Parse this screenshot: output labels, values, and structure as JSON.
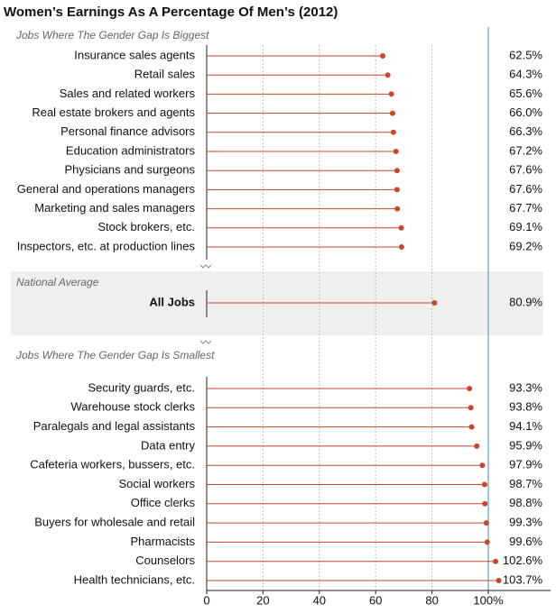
{
  "chart_data": {
    "type": "lollipop",
    "title": "Women’s Earnings As A Percentage Of Men’s (2012)",
    "color": "#c8462e",
    "xlim": [
      0,
      120
    ],
    "xticks": [
      0,
      20,
      40,
      60,
      80,
      {
        "value": 100,
        "label": "100%"
      }
    ],
    "grid": true,
    "reference_line": {
      "value": 100,
      "color": "#5aa0c8"
    },
    "groups": [
      {
        "label": "Jobs Where The Gender Gap Is Biggest",
        "categories": [
          "Insurance sales agents",
          "Retail sales",
          "Sales and related workers",
          "Real estate brokers and agents",
          "Personal finance advisors",
          "Education administrators",
          "Physicians and surgeons",
          "General and operations managers",
          "Marketing and sales managers",
          "Stock brokers, etc.",
          "Inspectors, etc. at production lines"
        ],
        "values": [
          62.5,
          64.3,
          65.6,
          66.0,
          66.3,
          67.2,
          67.6,
          67.6,
          67.7,
          69.1,
          69.2
        ],
        "value_labels": [
          "62.5%",
          "64.3%",
          "65.6%",
          "66.0%",
          "66.3%",
          "67.2%",
          "67.6%",
          "67.6%",
          "67.7%",
          "69.1%",
          "69.2%"
        ]
      },
      {
        "label": "National Average",
        "categories": [
          "All Jobs"
        ],
        "values": [
          80.9
        ],
        "value_labels": [
          "80.9%"
        ]
      },
      {
        "label": "Jobs Where The Gender Gap Is Smallest",
        "categories": [
          "Security guards, etc.",
          "Warehouse stock clerks",
          "Paralegals and legal assistants",
          "Data entry",
          "Cafeteria workers, bussers, etc.",
          "Social workers",
          "Office clerks",
          "Buyers for wholesale and retail",
          "Pharmacists",
          "Counselors",
          "Health technicians, etc."
        ],
        "values": [
          93.3,
          93.8,
          94.1,
          95.9,
          97.9,
          98.7,
          98.8,
          99.3,
          99.6,
          102.6,
          103.7
        ],
        "value_labels": [
          "93.3%",
          "93.8%",
          "94.1%",
          "95.9%",
          "97.9%",
          "98.7%",
          "98.8%",
          "99.3%",
          "99.6%",
          "102.6%",
          "103.7%"
        ]
      }
    ]
  }
}
